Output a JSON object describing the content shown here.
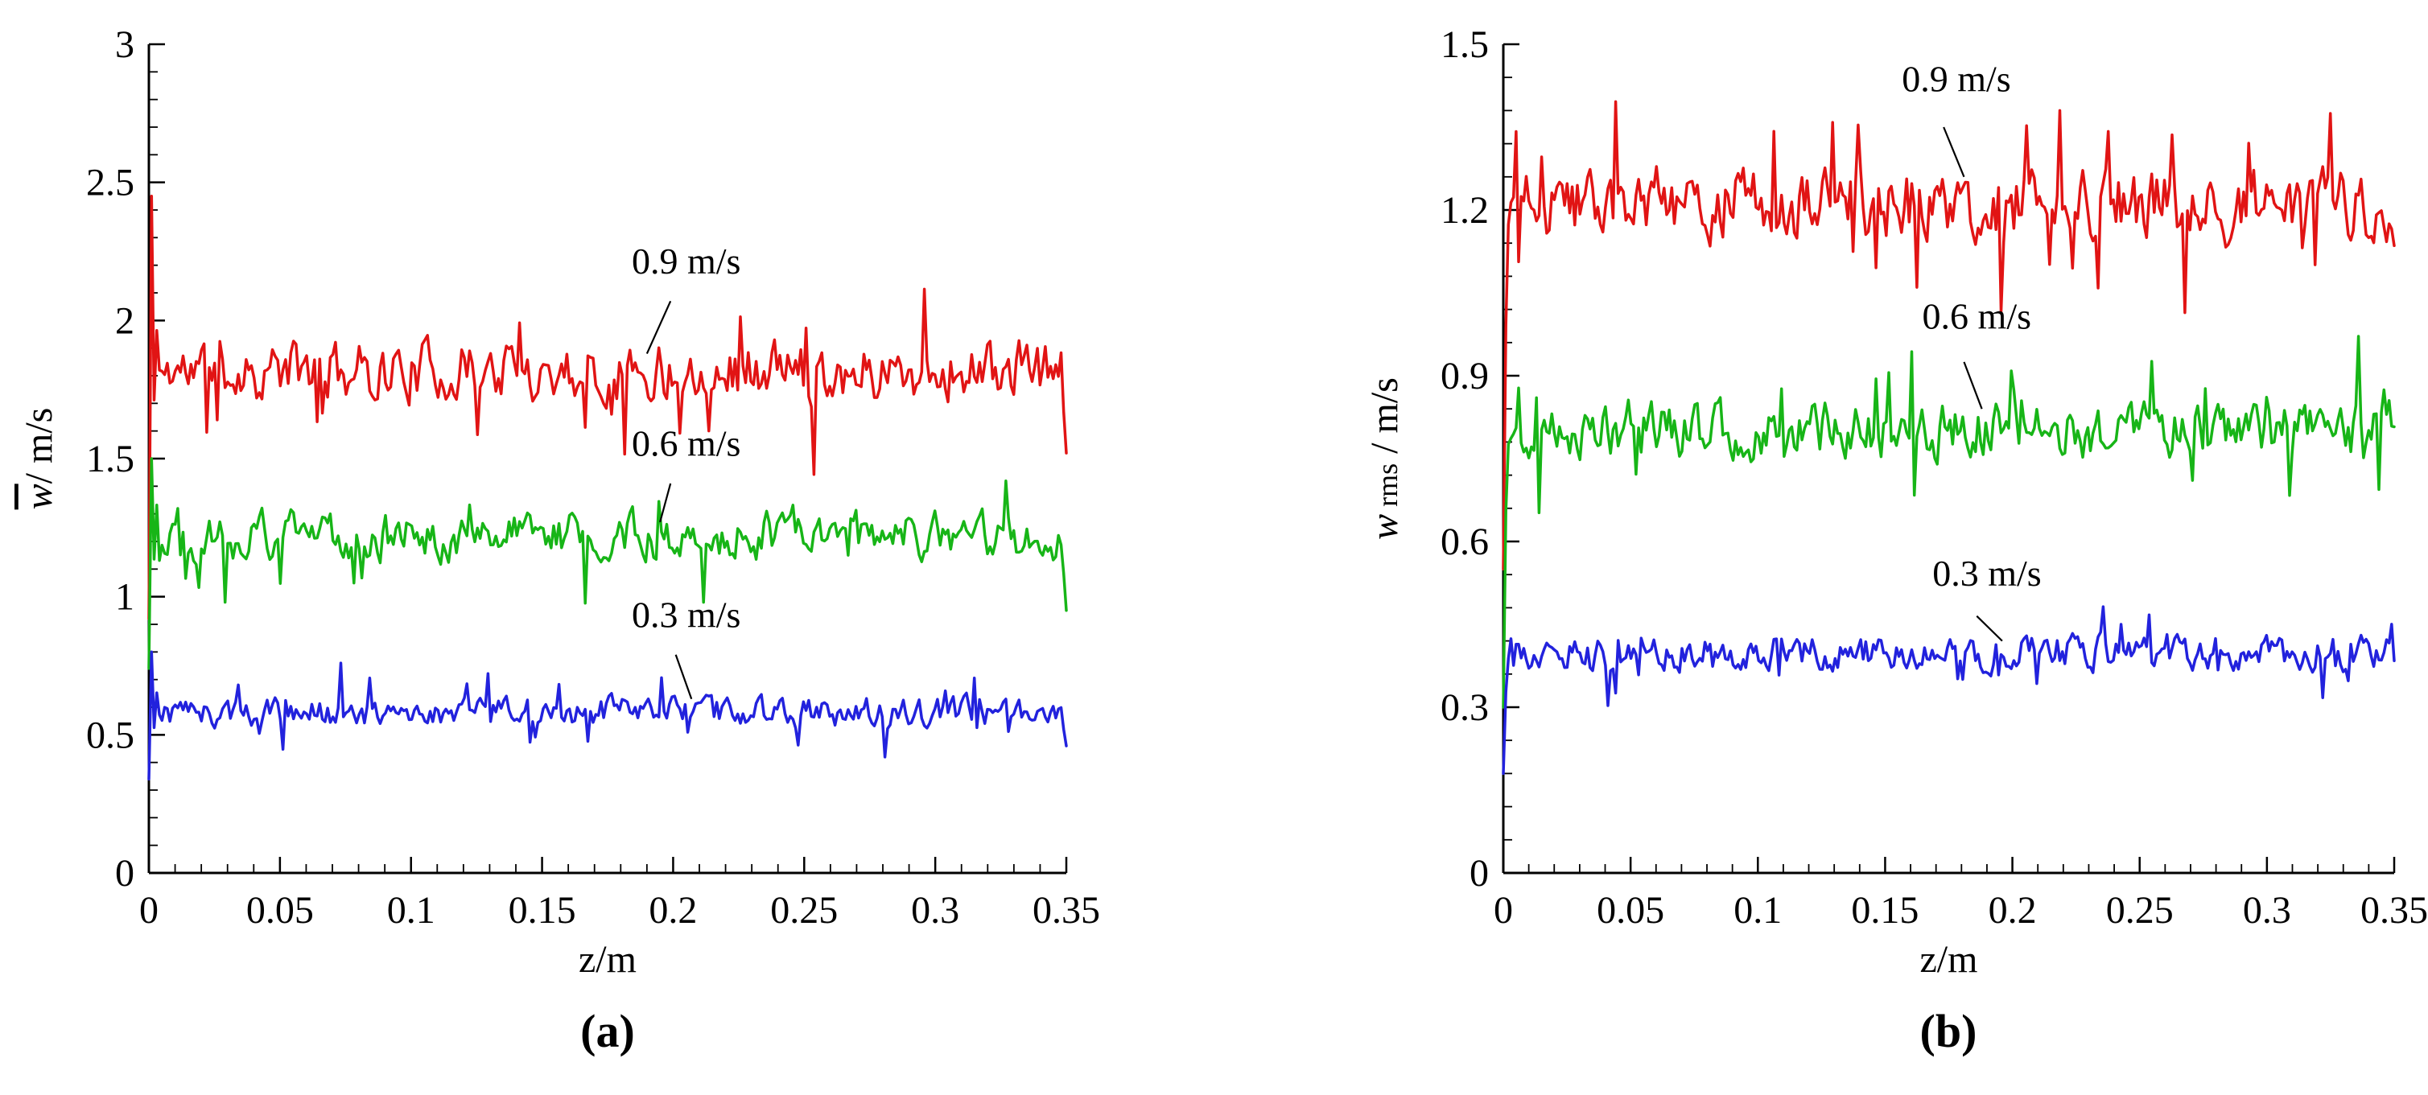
{
  "figure": {
    "captions": {
      "a": "(a)",
      "b": "(b)"
    }
  },
  "chart_data": [
    {
      "id": "a",
      "type": "line",
      "title": "",
      "xlabel": "z/m",
      "ylabel": "w̄/ m/s",
      "ylabel_parts": [
        {
          "text": "w",
          "italic": true,
          "overline": true
        },
        {
          "text": "/ m/s"
        }
      ],
      "xlim": [
        0,
        0.35
      ],
      "ylim": [
        0,
        3
      ],
      "x_ticks": [
        0,
        0.05,
        0.1,
        0.15,
        0.2,
        0.25,
        0.3,
        0.35
      ],
      "x_tick_labels": [
        "0",
        "0.05",
        "0.1",
        "0.15",
        "0.2",
        "0.25",
        "0.3",
        "0.35"
      ],
      "y_ticks": [
        0,
        0.5,
        1,
        1.5,
        2,
        2.5,
        3
      ],
      "y_tick_labels": [
        "0",
        "0.5",
        "1",
        "1.5",
        "2",
        "2.5",
        "3"
      ],
      "x_minor_step": 0.01,
      "y_minor_step": 0.1,
      "grid": false,
      "legend_position": "inline-annotations",
      "edge_profile": "spike",
      "series": [
        {
          "name": "0.9 m/s",
          "color": "#e11414",
          "mean": 1.82,
          "fluctuation_sd": 0.09,
          "start_value": 0.92,
          "start_spike": 2.45,
          "end_value": 1.52
        },
        {
          "name": "0.6 m/s",
          "color": "#17b517",
          "mean": 1.22,
          "fluctuation_sd": 0.07,
          "start_value": 0.74,
          "start_spike": 1.5,
          "end_value": 0.95
        },
        {
          "name": "0.3 m/s",
          "color": "#2222dd",
          "mean": 0.58,
          "fluctuation_sd": 0.045,
          "start_value": 0.34,
          "start_spike": 0.8,
          "end_value": 0.46
        }
      ],
      "annotations": [
        {
          "text": "0.9 m/s",
          "x": 0.205,
          "y": 2.17,
          "leader": [
            0.199,
            2.07,
            0.19,
            1.88
          ]
        },
        {
          "text": "0.6 m/s",
          "x": 0.205,
          "y": 1.51,
          "leader": [
            0.199,
            1.41,
            0.195,
            1.27
          ]
        },
        {
          "text": "0.3 m/s",
          "x": 0.205,
          "y": 0.89,
          "leader": [
            0.201,
            0.79,
            0.207,
            0.63
          ]
        }
      ]
    },
    {
      "id": "b",
      "type": "line",
      "title": "",
      "xlabel": "z/m",
      "ylabel": "w rms / m/s",
      "ylabel_parts": [
        {
          "text": "w",
          "italic": true
        },
        {
          "text": " rms",
          "small": true
        },
        {
          "text": " / m/s"
        }
      ],
      "xlim": [
        0,
        0.35
      ],
      "ylim": [
        0,
        1.5
      ],
      "x_ticks": [
        0,
        0.05,
        0.1,
        0.15,
        0.2,
        0.25,
        0.3,
        0.35
      ],
      "x_tick_labels": [
        "0",
        "0.05",
        "0.1",
        "0.15",
        "0.2",
        "0.25",
        "0.3",
        "0.35"
      ],
      "y_ticks": [
        0,
        0.3,
        0.6,
        0.9,
        1.2,
        1.5
      ],
      "y_tick_labels": [
        "0",
        "0.3",
        "0.6",
        "0.9",
        "1.2",
        "1.5"
      ],
      "x_minor_step": 0.01,
      "y_minor_step": 0.06,
      "grid": false,
      "legend_position": "inline-annotations",
      "edge_profile": "ramp",
      "series": [
        {
          "name": "0.9 m/s",
          "color": "#e11414",
          "mean": 1.21,
          "fluctuation_sd": 0.055,
          "start_value": 0.55
        },
        {
          "name": "0.6 m/s",
          "color": "#17b517",
          "mean": 0.8,
          "fluctuation_sd": 0.042,
          "start_value": 0.3
        },
        {
          "name": "0.3 m/s",
          "color": "#2222dd",
          "mean": 0.4,
          "fluctuation_sd": 0.026,
          "start_value": 0.18
        }
      ],
      "annotations": [
        {
          "text": "0.9 m/s",
          "x": 0.178,
          "y": 1.415,
          "leader": [
            0.173,
            1.35,
            0.181,
            1.26
          ]
        },
        {
          "text": "0.6 m/s",
          "x": 0.186,
          "y": 0.985,
          "leader": [
            0.181,
            0.925,
            0.188,
            0.84
          ]
        },
        {
          "text": "0.3 m/s",
          "x": 0.19,
          "y": 0.52,
          "leader": [
            0.186,
            0.465,
            0.196,
            0.42
          ]
        }
      ]
    }
  ]
}
